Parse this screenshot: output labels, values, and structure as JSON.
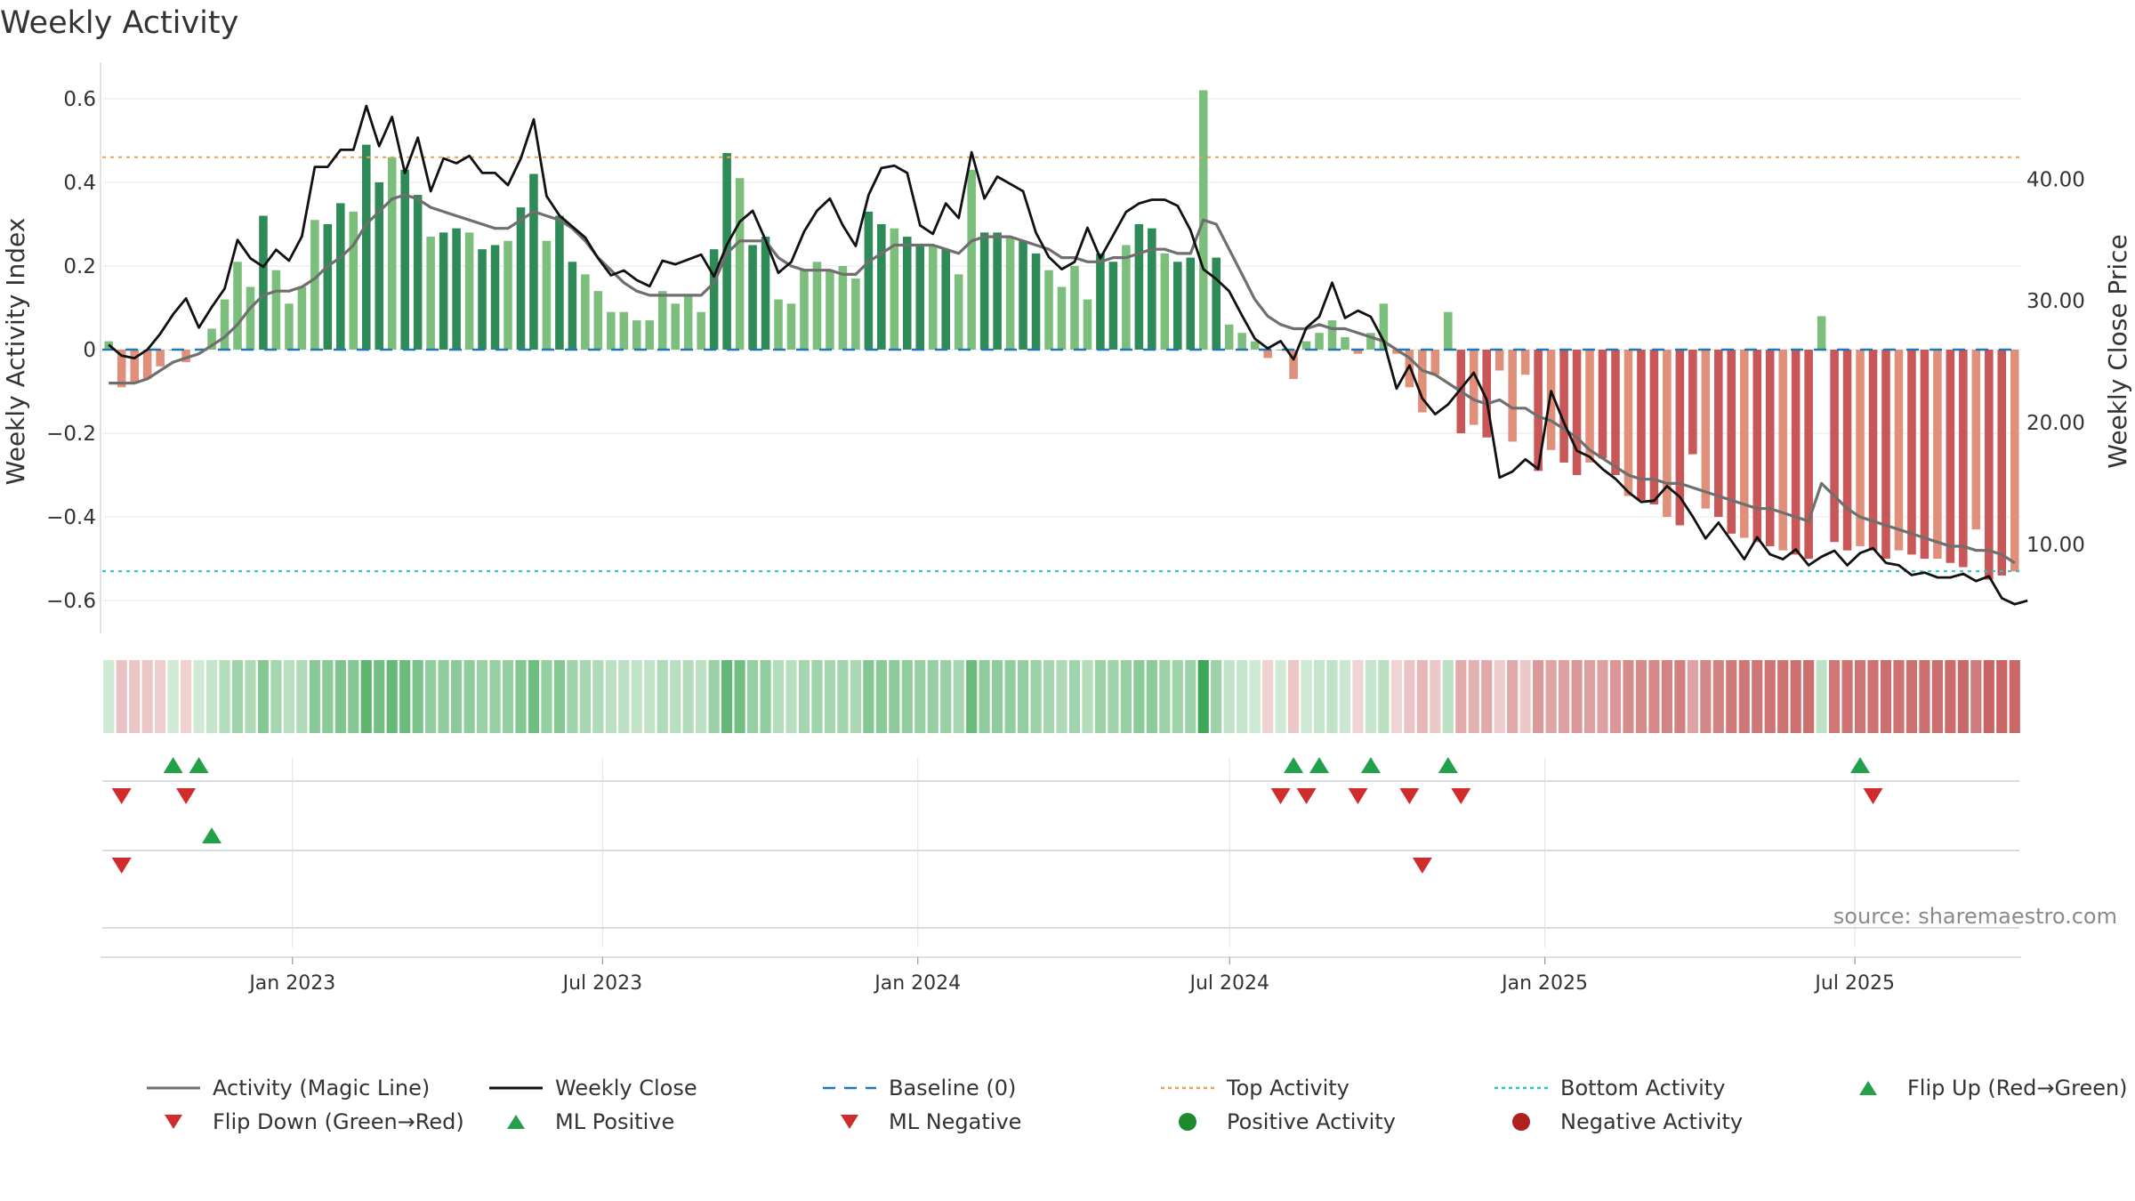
{
  "chart_data": {
    "type": "bar+line",
    "title": "Weekly Activity",
    "ylabel_left": "Weekly Activity Index",
    "ylabel_right": "Weekly Close Price",
    "ylim_left": [
      -0.67,
      0.67
    ],
    "ylim_right": [
      3.0,
      49.0
    ],
    "left_ticks": [
      {
        "value": 0.6,
        "label": "0.6"
      },
      {
        "value": 0.4,
        "label": "0.4"
      },
      {
        "value": 0.2,
        "label": "0.2"
      },
      {
        "value": 0.0,
        "label": "0"
      },
      {
        "value": -0.2,
        "label": "−0.2"
      },
      {
        "value": -0.4,
        "label": "−0.4"
      },
      {
        "value": -0.6,
        "label": "−0.6"
      }
    ],
    "right_ticks": [
      {
        "value": 40,
        "label": "40.00"
      },
      {
        "value": 30,
        "label": "30.00"
      },
      {
        "value": 20,
        "label": "20.00"
      },
      {
        "value": 10,
        "label": "10.00"
      }
    ],
    "x_start": "2022-09-12",
    "x_end": "2025-10-06",
    "x_ticks": [
      {
        "date": "2023-01-01",
        "label": "Jan 2023"
      },
      {
        "date": "2023-07-01",
        "label": "Jul 2023"
      },
      {
        "date": "2024-01-01",
        "label": "Jan 2024"
      },
      {
        "date": "2024-07-01",
        "label": "Jul 2024"
      },
      {
        "date": "2025-01-01",
        "label": "Jan 2025"
      },
      {
        "date": "2025-07-01",
        "label": "Jul 2025"
      }
    ],
    "top_activity": 0.46,
    "bottom_activity": -0.53,
    "activity": [
      0.02,
      -0.09,
      -0.08,
      -0.07,
      -0.04,
      0.0,
      -0.03,
      0.0,
      0.05,
      0.12,
      0.21,
      0.15,
      0.32,
      0.19,
      0.11,
      0.15,
      0.31,
      0.3,
      0.35,
      0.33,
      0.49,
      0.4,
      0.46,
      0.43,
      0.37,
      0.27,
      0.28,
      0.29,
      0.28,
      0.24,
      0.25,
      0.26,
      0.34,
      0.42,
      0.26,
      0.32,
      0.21,
      0.18,
      0.14,
      0.09,
      0.09,
      0.07,
      0.07,
      0.14,
      0.11,
      0.13,
      0.09,
      0.24,
      0.47,
      0.41,
      0.25,
      0.27,
      0.12,
      0.11,
      0.19,
      0.21,
      0.19,
      0.2,
      0.17,
      0.33,
      0.3,
      0.29,
      0.27,
      0.25,
      0.25,
      0.24,
      0.18,
      0.43,
      0.28,
      0.28,
      0.27,
      0.26,
      0.23,
      0.19,
      0.15,
      0.2,
      0.12,
      0.23,
      0.21,
      0.25,
      0.3,
      0.29,
      0.23,
      0.21,
      0.22,
      0.62,
      0.22,
      0.06,
      0.04,
      0.02,
      -0.02,
      0.0,
      -0.07,
      0.02,
      0.04,
      0.07,
      0.03,
      -0.01,
      0.04,
      0.11,
      -0.01,
      -0.09,
      -0.15,
      -0.06,
      0.09,
      -0.2,
      -0.18,
      -0.21,
      -0.05,
      -0.22,
      -0.06,
      -0.29,
      -0.24,
      -0.27,
      -0.3,
      -0.27,
      -0.26,
      -0.3,
      -0.35,
      -0.36,
      -0.37,
      -0.4,
      -0.42,
      -0.25,
      -0.38,
      -0.4,
      -0.44,
      -0.45,
      -0.46,
      -0.47,
      -0.48,
      -0.49,
      -0.5,
      0.08,
      -0.46,
      -0.48,
      -0.47,
      -0.48,
      -0.5,
      -0.48,
      -0.49,
      -0.5,
      -0.5,
      -0.51,
      -0.52,
      -0.43,
      -0.55,
      -0.54,
      -0.53
    ],
    "magic_line": [
      -0.08,
      -0.08,
      -0.08,
      -0.07,
      -0.05,
      -0.03,
      -0.02,
      -0.01,
      0.01,
      0.03,
      0.06,
      0.1,
      0.13,
      0.14,
      0.14,
      0.15,
      0.17,
      0.2,
      0.22,
      0.25,
      0.3,
      0.33,
      0.36,
      0.37,
      0.36,
      0.34,
      0.33,
      0.32,
      0.31,
      0.3,
      0.29,
      0.29,
      0.31,
      0.33,
      0.32,
      0.31,
      0.29,
      0.26,
      0.22,
      0.19,
      0.16,
      0.14,
      0.13,
      0.13,
      0.13,
      0.13,
      0.13,
      0.16,
      0.23,
      0.26,
      0.26,
      0.26,
      0.22,
      0.2,
      0.19,
      0.19,
      0.19,
      0.18,
      0.18,
      0.21,
      0.23,
      0.25,
      0.25,
      0.25,
      0.25,
      0.24,
      0.23,
      0.26,
      0.27,
      0.27,
      0.27,
      0.26,
      0.25,
      0.24,
      0.22,
      0.22,
      0.21,
      0.21,
      0.22,
      0.22,
      0.23,
      0.24,
      0.24,
      0.23,
      0.23,
      0.31,
      0.3,
      0.24,
      0.18,
      0.12,
      0.08,
      0.06,
      0.05,
      0.05,
      0.06,
      0.05,
      0.05,
      0.04,
      0.03,
      0.02,
      0.0,
      -0.02,
      -0.05,
      -0.06,
      -0.08,
      -0.1,
      -0.12,
      -0.13,
      -0.12,
      -0.14,
      -0.14,
      -0.16,
      -0.17,
      -0.19,
      -0.21,
      -0.24,
      -0.26,
      -0.28,
      -0.3,
      -0.31,
      -0.31,
      -0.32,
      -0.32,
      -0.33,
      -0.34,
      -0.35,
      -0.36,
      -0.37,
      -0.38,
      -0.38,
      -0.39,
      -0.4,
      -0.41,
      -0.32,
      -0.35,
      -0.38,
      -0.4,
      -0.41,
      -0.42,
      -0.43,
      -0.44,
      -0.45,
      -0.46,
      -0.47,
      -0.47,
      -0.48,
      -0.48,
      -0.49,
      -0.51
    ],
    "weekly_close": [
      26.4,
      25.5,
      25.3,
      26.0,
      27.3,
      28.9,
      30.2,
      27.8,
      29.5,
      31.0,
      35.0,
      33.5,
      32.8,
      34.2,
      33.3,
      35.3,
      41.0,
      41.0,
      42.4,
      42.4,
      46.0,
      42.7,
      45.1,
      40.5,
      43.4,
      39.0,
      41.7,
      41.3,
      41.9,
      40.5,
      40.5,
      39.5,
      41.7,
      44.9,
      38.6,
      37.0,
      36.1,
      35.2,
      33.5,
      32.1,
      32.5,
      31.7,
      31.2,
      33.3,
      33.0,
      33.4,
      33.8,
      32.0,
      34.6,
      36.5,
      37.4,
      35.0,
      32.3,
      33.2,
      35.7,
      37.4,
      38.4,
      36.2,
      34.5,
      38.7,
      40.9,
      41.1,
      40.5,
      36.2,
      35.5,
      38.0,
      36.8,
      42.2,
      38.4,
      40.2,
      39.6,
      39.0,
      35.6,
      33.6,
      32.6,
      33.2,
      36.0,
      33.5,
      35.4,
      37.3,
      38.0,
      38.3,
      38.3,
      37.8,
      35.8,
      32.6,
      31.8,
      30.8,
      28.8,
      26.9,
      26.1,
      26.7,
      25.2,
      27.8,
      28.7,
      31.5,
      28.6,
      29.2,
      28.7,
      26.7,
      22.8,
      24.7,
      22.0,
      20.7,
      21.5,
      22.8,
      24.1,
      21.9,
      15.5,
      16.0,
      17.0,
      16.2,
      22.6,
      20.0,
      17.7,
      17.2,
      16.2,
      15.4,
      14.3,
      13.5,
      13.6,
      14.8,
      13.9,
      12.3,
      10.5,
      11.8,
      10.3,
      8.8,
      10.6,
      9.2,
      8.8,
      9.6,
      8.3,
      9.0,
      9.5,
      8.3,
      9.3,
      9.7,
      8.5,
      8.3,
      7.5,
      7.7,
      7.3,
      7.3,
      7.6,
      7.0,
      7.4,
      5.6,
      5.1,
      5.4
    ],
    "bar_colors": {
      "positive_strong": "#2e8b57",
      "positive_light": "#7cbf7c",
      "negative_strong": "#c95757",
      "negative_light": "#e0907a"
    },
    "line_colors": {
      "activity_magic_line": "#6f6f6f",
      "weekly_close": "#111111",
      "baseline": "#1f77b4",
      "top_activity": "#e8a050",
      "bottom_activity": "#27c4cc"
    },
    "flip_up_weeks": [
      5,
      7,
      92,
      94,
      98,
      104,
      136
    ],
    "flip_down_weeks": [
      1,
      6,
      91,
      93,
      97,
      101,
      105,
      137
    ],
    "ml_positive_weeks": [
      8
    ],
    "ml_negative_weeks": [
      1,
      102
    ],
    "legend": [
      {
        "label": "Activity (Magic Line)",
        "symbol": "line-solid",
        "color": "#6f6f6f"
      },
      {
        "label": "Weekly Close",
        "symbol": "line-solid",
        "color": "#111111"
      },
      {
        "label": "Baseline (0)",
        "symbol": "line-dashed",
        "color": "#1f77b4"
      },
      {
        "label": "Top Activity",
        "symbol": "line-dotted",
        "color": "#e8a050"
      },
      {
        "label": "Bottom Activity",
        "symbol": "line-dotted",
        "color": "#27c4cc"
      },
      {
        "label": "Flip Up (Red→Green)",
        "symbol": "triangle-up",
        "color": "#22a04a"
      },
      {
        "label": "Flip Down (Green→Red)",
        "symbol": "triangle-down",
        "color": "#d12c2c"
      },
      {
        "label": "ML Positive",
        "symbol": "triangle-up",
        "color": "#22a04a"
      },
      {
        "label": "ML Negative",
        "symbol": "triangle-down",
        "color": "#d12c2c"
      },
      {
        "label": "Positive Activity",
        "symbol": "circle",
        "color": "#1e8a2e"
      },
      {
        "label": "Negative Activity",
        "symbol": "circle",
        "color": "#b02020"
      }
    ],
    "source": "source: sharemaestro.com"
  }
}
